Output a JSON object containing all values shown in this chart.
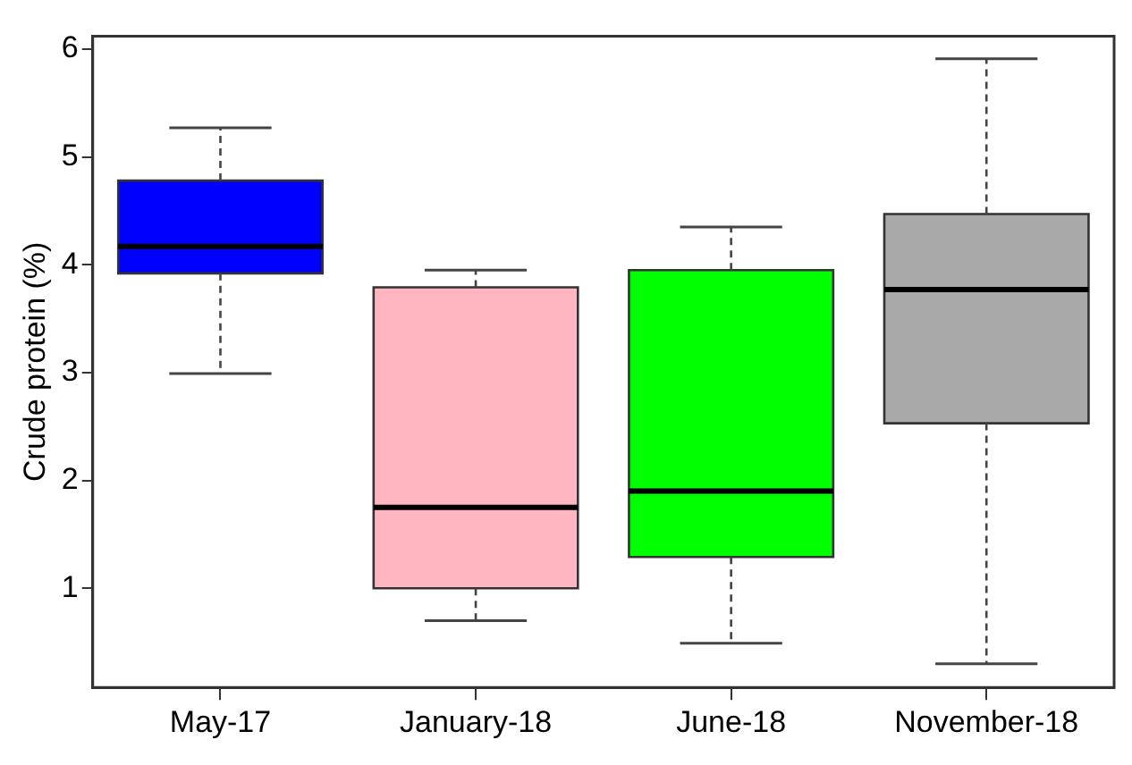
{
  "chart_data": {
    "type": "box",
    "ylabel": "Crude protein (%)",
    "categories": [
      "May-17",
      "January-18",
      "June-18",
      "November-18"
    ],
    "colors": [
      "#0000ff",
      "#ffb6c1",
      "#00ff00",
      "#a9a9a9"
    ],
    "boxes": [
      {
        "low": 2.99,
        "q1": 3.92,
        "median": 4.17,
        "q3": 4.78,
        "high": 5.27
      },
      {
        "low": 0.7,
        "q1": 1.0,
        "median": 1.75,
        "q3": 3.79,
        "high": 3.95
      },
      {
        "low": 0.49,
        "q1": 1.29,
        "median": 1.9,
        "q3": 3.95,
        "high": 4.35
      },
      {
        "low": 0.3,
        "q1": 2.53,
        "median": 3.77,
        "q3": 4.47,
        "high": 5.91
      }
    ],
    "ylim": [
      0.08,
      6.12
    ],
    "yticks": [
      1,
      2,
      3,
      4,
      5,
      6
    ],
    "grid": false,
    "legend": false
  }
}
